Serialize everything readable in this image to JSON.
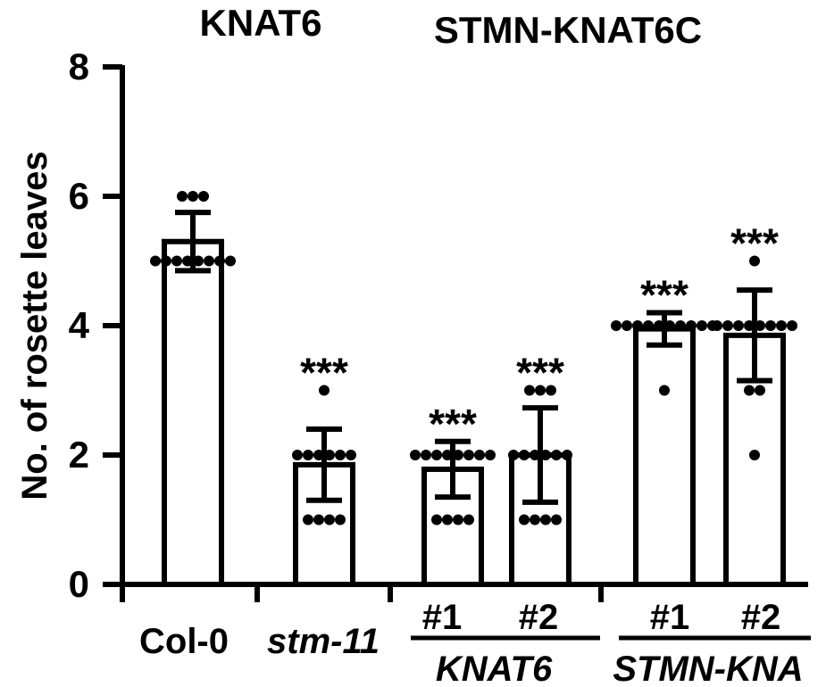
{
  "chart_data": {
    "type": "bar",
    "ylabel": "No. of rosette leaves",
    "ylim": [
      0,
      8
    ],
    "yticks": [
      0,
      2,
      4,
      6,
      8
    ],
    "top_labels": [
      "KNAT6",
      "STMN-KNAT6C"
    ],
    "categories": [
      "Col-0",
      "stm-11",
      "#1",
      "#2",
      "#1",
      "#2"
    ],
    "italic_categories": [
      "stm-11"
    ],
    "groups": [
      {
        "label": "KNAT6",
        "members": [
          2,
          3
        ]
      },
      {
        "label": "STMN-KNA",
        "members": [
          4,
          5
        ]
      }
    ],
    "series": [
      {
        "values": [
          5.3,
          1.85,
          1.78,
          2.0,
          3.95,
          3.85
        ],
        "errors": [
          0.45,
          0.55,
          0.43,
          0.73,
          0.25,
          0.7
        ],
        "significance": [
          "",
          "***",
          "***",
          "***",
          "***",
          "***"
        ],
        "points": [
          [
            6,
            6,
            6,
            5,
            5,
            5,
            5,
            5,
            5,
            5,
            5
          ],
          [
            3,
            2,
            2,
            2,
            2,
            2,
            2,
            1,
            1,
            1,
            1
          ],
          [
            2,
            2,
            2,
            2,
            2,
            2,
            2,
            2,
            1,
            1,
            1,
            1
          ],
          [
            3,
            3,
            3,
            2,
            2,
            2,
            2,
            2,
            2,
            1,
            1,
            1,
            1
          ],
          [
            4,
            4,
            4,
            4,
            4,
            4,
            4,
            4,
            4,
            4,
            3
          ],
          [
            5,
            4,
            4,
            4,
            4,
            4,
            4,
            4,
            4,
            3,
            3,
            2
          ]
        ]
      }
    ],
    "grid": false,
    "legend": "none"
  }
}
